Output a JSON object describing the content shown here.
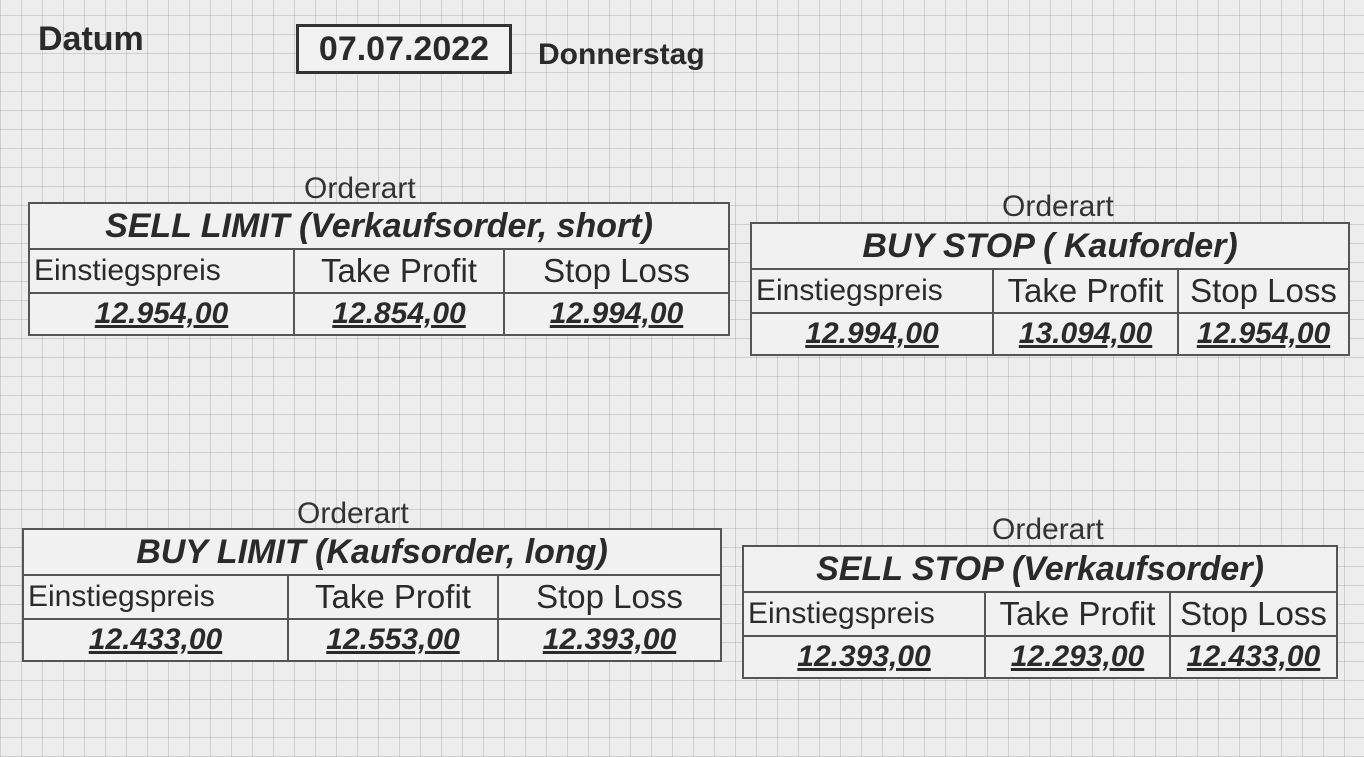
{
  "header": {
    "datum_label": "Datum",
    "date": "07.07.2022",
    "weekday": "Donnerstag"
  },
  "columns": {
    "entry": "Einstiegspreis",
    "take_profit": "Take Profit",
    "stop_loss": "Stop Loss"
  },
  "orders": [
    {
      "orderart_label": "Orderart",
      "title": "SELL LIMIT (Verkaufsorder, short)",
      "entry": "12.954,00",
      "take_profit": "12.854,00",
      "stop_loss": "12.994,00"
    },
    {
      "orderart_label": "Orderart",
      "title": "BUY STOP ( Kauforder)",
      "entry": "12.994,00",
      "take_profit": "13.094,00",
      "stop_loss": "12.954,00"
    },
    {
      "orderart_label": "Orderart",
      "title": "BUY LIMIT (Kaufsorder, long)",
      "entry": "12.433,00",
      "take_profit": "12.553,00",
      "stop_loss": "12.393,00"
    },
    {
      "orderart_label": "Orderart",
      "title": "SELL STOP (Verkaufsorder)",
      "entry": "12.393,00",
      "take_profit": "12.293,00",
      "stop_loss": "12.433,00"
    }
  ]
}
